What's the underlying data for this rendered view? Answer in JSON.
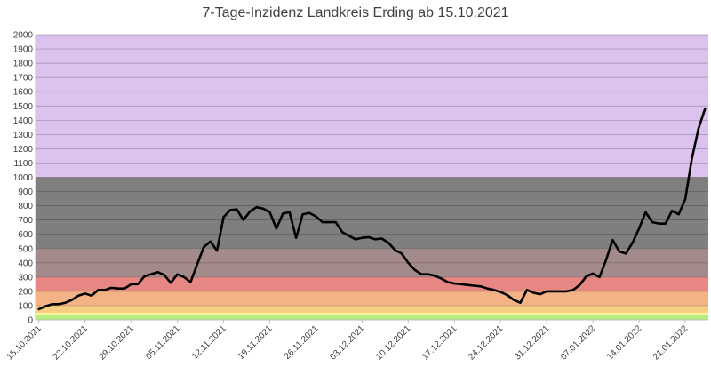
{
  "chart_data": {
    "type": "line",
    "title": "7-Tage-Inzidenz Landkreis Erding ab 15.10.2021",
    "xlabel": "",
    "ylabel": "",
    "ylim": [
      0,
      2000
    ],
    "yticks": [
      0,
      100,
      200,
      300,
      400,
      500,
      600,
      700,
      800,
      900,
      1000,
      1100,
      1200,
      1300,
      1400,
      1500,
      1600,
      1700,
      1800,
      1900,
      2000
    ],
    "grid": true,
    "legend": "none",
    "x_start": "15.10.2021",
    "x_end": "24.01.2022",
    "xtick_labels": [
      "15.10.2021",
      "22.10.2021",
      "29.10.2021",
      "05.11.2021",
      "12.11.2021",
      "19.11.2021",
      "26.11.2021",
      "03.12.2021",
      "10.12.2021",
      "17.12.2021",
      "24.12.2021",
      "31.12.2021",
      "07.01.2022",
      "14.01.2022",
      "21.01.2022"
    ],
    "bands": [
      {
        "from": 0,
        "to": 35,
        "color": "#b7ee7d"
      },
      {
        "from": 35,
        "to": 50,
        "color": "#f6f59a"
      },
      {
        "from": 50,
        "to": 100,
        "color": "#f7cf82"
      },
      {
        "from": 100,
        "to": 200,
        "color": "#f3b385"
      },
      {
        "from": 200,
        "to": 300,
        "color": "#e78784"
      },
      {
        "from": 300,
        "to": 500,
        "color": "#a48b8b"
      },
      {
        "from": 500,
        "to": 1000,
        "color": "#7f7f7f"
      },
      {
        "from": 1000,
        "to": 2000,
        "color": "#dcc3ef"
      }
    ],
    "series": [
      {
        "color": "#000000",
        "x": [
          "15.10.2021",
          "16.10.2021",
          "17.10.2021",
          "18.10.2021",
          "19.10.2021",
          "20.10.2021",
          "21.10.2021",
          "22.10.2021",
          "23.10.2021",
          "24.10.2021",
          "25.10.2021",
          "26.10.2021",
          "27.10.2021",
          "28.10.2021",
          "29.10.2021",
          "30.10.2021",
          "31.10.2021",
          "01.11.2021",
          "02.11.2021",
          "03.11.2021",
          "04.11.2021",
          "05.11.2021",
          "06.11.2021",
          "07.11.2021",
          "08.11.2021",
          "09.11.2021",
          "10.11.2021",
          "11.11.2021",
          "12.11.2021",
          "13.11.2021",
          "14.11.2021",
          "15.11.2021",
          "16.11.2021",
          "17.11.2021",
          "18.11.2021",
          "19.11.2021",
          "20.11.2021",
          "21.11.2021",
          "22.11.2021",
          "23.11.2021",
          "24.11.2021",
          "25.11.2021",
          "26.11.2021",
          "27.11.2021",
          "28.11.2021",
          "29.11.2021",
          "30.11.2021",
          "01.12.2021",
          "02.12.2021",
          "03.12.2021",
          "04.12.2021",
          "05.12.2021",
          "06.12.2021",
          "07.12.2021",
          "08.12.2021",
          "09.12.2021",
          "10.12.2021",
          "11.12.2021",
          "12.12.2021",
          "13.12.2021",
          "14.12.2021",
          "15.12.2021",
          "16.12.2021",
          "17.12.2021",
          "18.12.2021",
          "19.12.2021",
          "20.12.2021",
          "21.12.2021",
          "22.12.2021",
          "23.12.2021",
          "24.12.2021",
          "25.12.2021",
          "26.12.2021",
          "27.12.2021",
          "28.12.2021",
          "29.12.2021",
          "30.12.2021",
          "31.12.2021",
          "01.01.2022",
          "02.01.2022",
          "03.01.2022",
          "04.01.2022",
          "05.01.2022",
          "06.01.2022",
          "07.01.2022",
          "08.01.2022",
          "09.01.2022",
          "10.01.2022",
          "11.01.2022",
          "12.01.2022",
          "13.01.2022",
          "14.01.2022",
          "15.01.2022",
          "16.01.2022",
          "17.01.2022",
          "18.01.2022",
          "19.01.2022",
          "20.01.2022",
          "21.01.2022",
          "22.01.2022",
          "23.01.2022",
          "24.01.2022"
        ],
        "values": [
          75,
          95,
          110,
          110,
          120,
          140,
          170,
          185,
          170,
          210,
          210,
          225,
          220,
          220,
          250,
          250,
          305,
          320,
          335,
          315,
          260,
          320,
          300,
          265,
          390,
          510,
          550,
          485,
          720,
          770,
          775,
          700,
          760,
          790,
          780,
          755,
          640,
          745,
          755,
          575,
          740,
          750,
          725,
          685,
          685,
          685,
          615,
          590,
          565,
          575,
          580,
          565,
          570,
          540,
          490,
          465,
          400,
          350,
          320,
          320,
          310,
          290,
          265,
          255,
          250,
          245,
          240,
          235,
          220,
          210,
          195,
          175,
          140,
          120,
          210,
          190,
          180,
          200,
          200,
          200,
          200,
          210,
          245,
          305,
          325,
          300,
          420,
          560,
          480,
          465,
          540,
          640,
          755,
          685,
          675,
          675,
          765,
          740,
          845,
          1130,
          1340,
          1480
        ]
      }
    ]
  }
}
